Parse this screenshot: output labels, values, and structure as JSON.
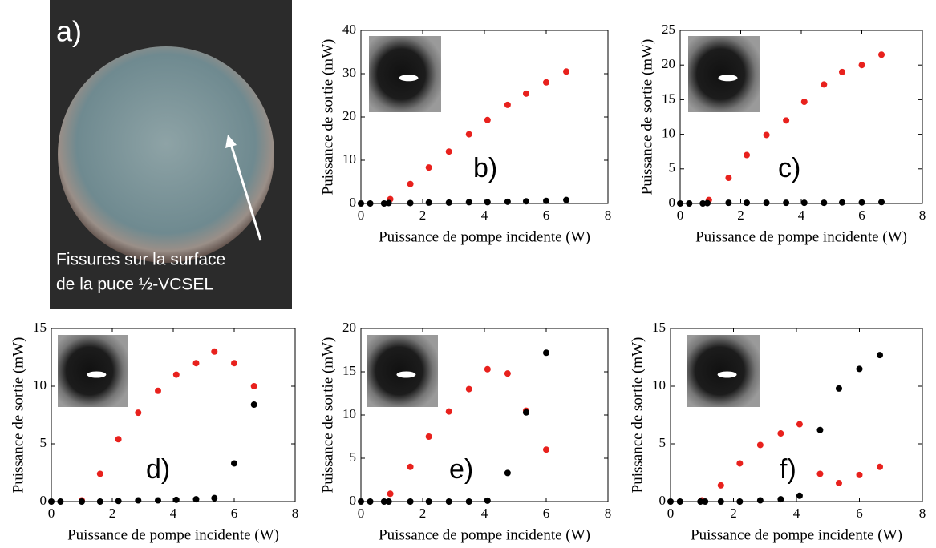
{
  "photo": {
    "label": "a)",
    "caption": [
      "Fissures sur la surface",
      "de la puce ½-VCSEL"
    ]
  },
  "chart_data": [
    {
      "type": "scatter",
      "label": "b)",
      "xlabel": "Puissance de pompe incidente (W)",
      "ylabel": "Puissance de sortie (mW)",
      "xlim": [
        0,
        8
      ],
      "xticks": [
        0,
        2,
        4,
        6,
        8
      ],
      "ylim": [
        0,
        40
      ],
      "yticks": [
        0,
        10,
        20,
        30,
        40
      ],
      "series": [
        {
          "color": "#e8211d",
          "x": [
            0.95,
            1.6,
            2.2,
            2.85,
            3.5,
            4.1,
            4.75,
            5.35,
            6.0,
            6.65
          ],
          "values": [
            1,
            4.5,
            8.3,
            12,
            16,
            19.3,
            22.8,
            25.4,
            28,
            30.5
          ]
        },
        {
          "color": "#000000",
          "x": [
            0,
            0.3,
            0.75,
            0.9,
            1.6,
            2.2,
            2.85,
            3.5,
            4.1,
            4.75,
            5.35,
            6.0,
            6.65
          ],
          "values": [
            0,
            0,
            0,
            0.1,
            0.1,
            0.2,
            0.2,
            0.3,
            0.3,
            0.4,
            0.5,
            0.6,
            0.8
          ]
        }
      ]
    },
    {
      "type": "scatter",
      "label": "c)",
      "xlabel": "Puissance de pompe incidente (W)",
      "ylabel": "Puissance de sortie (mW)",
      "xlim": [
        0,
        8
      ],
      "xticks": [
        0,
        2,
        4,
        6,
        8
      ],
      "ylim": [
        0,
        25
      ],
      "yticks": [
        0,
        5,
        10,
        15,
        20,
        25
      ],
      "series": [
        {
          "color": "#e8211d",
          "x": [
            0.95,
            1.6,
            2.2,
            2.85,
            3.5,
            4.1,
            4.75,
            5.35,
            6.0,
            6.65
          ],
          "values": [
            0.5,
            3.7,
            7,
            9.9,
            12,
            14.7,
            17.2,
            19,
            20,
            21.5
          ]
        },
        {
          "color": "#000000",
          "x": [
            0,
            0.3,
            0.75,
            0.9,
            1.6,
            2.2,
            2.85,
            3.5,
            4.1,
            4.75,
            5.35,
            6.0,
            6.65
          ],
          "values": [
            0,
            0,
            0,
            0.05,
            0.1,
            0.1,
            0.1,
            0.1,
            0.1,
            0.1,
            0.15,
            0.15,
            0.2
          ]
        }
      ]
    },
    {
      "type": "scatter",
      "label": "d)",
      "xlabel": "Puissance de pompe incidente (W)",
      "ylabel": "Puissance de sortie (mW)",
      "xlim": [
        0,
        8
      ],
      "xticks": [
        0,
        2,
        4,
        6,
        8
      ],
      "ylim": [
        0,
        15
      ],
      "yticks": [
        0,
        5,
        10,
        15
      ],
      "series": [
        {
          "color": "#e8211d",
          "x": [
            1.0,
            1.6,
            2.2,
            2.85,
            3.5,
            4.1,
            4.75,
            5.35,
            6.0,
            6.65
          ],
          "values": [
            0.1,
            2.4,
            5.4,
            7.7,
            9.6,
            11,
            12,
            13,
            12,
            10
          ]
        },
        {
          "color": "#000000",
          "x": [
            0,
            0.3,
            1.0,
            1.6,
            2.2,
            2.85,
            3.5,
            4.1,
            4.75,
            5.35,
            6.0,
            6.65
          ],
          "values": [
            0,
            0,
            0,
            0,
            0.05,
            0.1,
            0.1,
            0.15,
            0.2,
            0.3,
            3.3,
            8.4
          ]
        }
      ]
    },
    {
      "type": "scatter",
      "label": "e)",
      "xlabel": "Puissance de pompe incidente (W)",
      "ylabel": "Puissance de sortie (mW)",
      "xlim": [
        0,
        8
      ],
      "xticks": [
        0,
        2,
        4,
        6,
        8
      ],
      "ylim": [
        0,
        20
      ],
      "yticks": [
        0,
        5,
        10,
        15,
        20
      ],
      "series": [
        {
          "color": "#e8211d",
          "x": [
            0.95,
            1.6,
            2.2,
            2.85,
            3.5,
            4.1,
            4.75,
            5.35,
            6.0
          ],
          "values": [
            0.9,
            4,
            7.5,
            10.4,
            13,
            15.3,
            14.8,
            10.5,
            6
          ]
        },
        {
          "color": "#000000",
          "x": [
            0,
            0.3,
            0.75,
            0.9,
            1.6,
            2.2,
            2.85,
            3.5,
            4.1,
            4.75,
            5.35,
            6.0
          ],
          "values": [
            0,
            0,
            0,
            0,
            0,
            0,
            0,
            0,
            0.1,
            3.3,
            10.3,
            17.2
          ]
        }
      ]
    },
    {
      "type": "scatter",
      "label": "f)",
      "xlabel": "Puissance de pompe incidente (W)",
      "ylabel": "Puissance de sortie (mW)",
      "xlim": [
        0,
        8
      ],
      "xticks": [
        0,
        2,
        4,
        6,
        8
      ],
      "ylim": [
        0,
        15
      ],
      "yticks": [
        0,
        5,
        10,
        15
      ],
      "series": [
        {
          "color": "#e8211d",
          "x": [
            1.0,
            1.6,
            2.2,
            2.85,
            3.5,
            4.1,
            4.75,
            5.35,
            6.0,
            6.65
          ],
          "values": [
            0.1,
            1.4,
            3.3,
            4.9,
            5.9,
            6.7,
            2.4,
            1.6,
            2.3,
            3
          ]
        },
        {
          "color": "#000000",
          "x": [
            0,
            0.3,
            0.95,
            1.1,
            1.6,
            2.2,
            2.85,
            3.5,
            4.1,
            4.75,
            5.35,
            6.0,
            6.65
          ],
          "values": [
            0,
            0,
            0,
            0,
            0,
            0,
            0.1,
            0.2,
            0.5,
            6.2,
            9.8,
            11.5,
            12.7
          ]
        }
      ]
    }
  ]
}
